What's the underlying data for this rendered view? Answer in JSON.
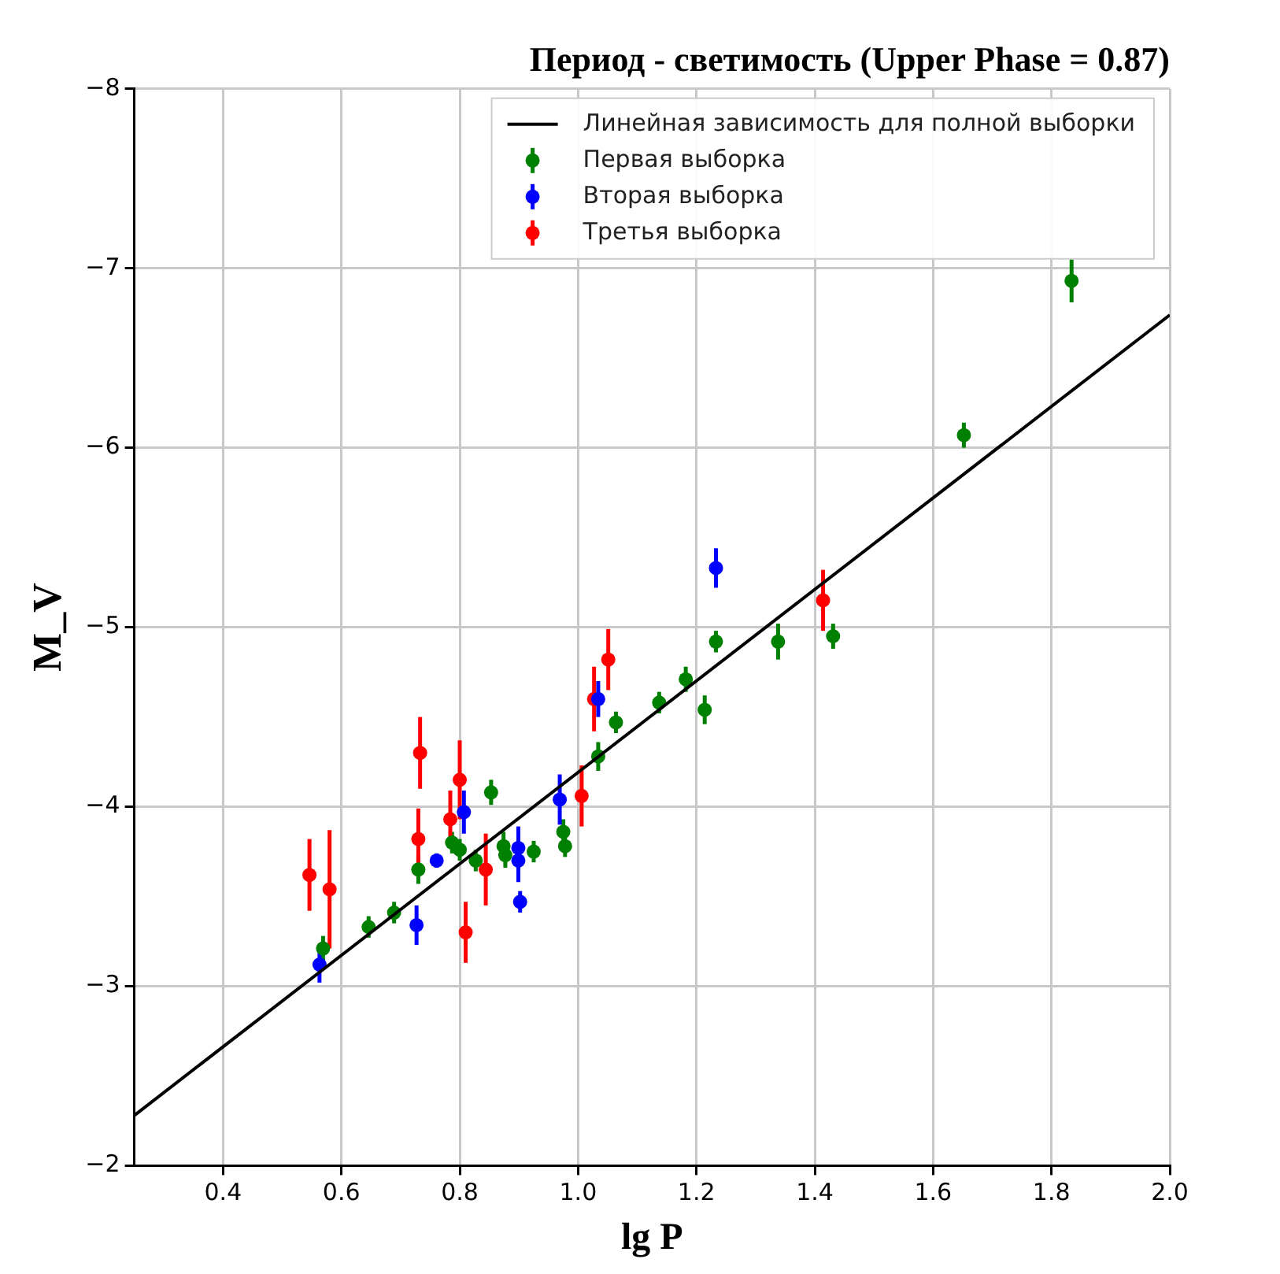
{
  "chart_data": {
    "type": "scatter",
    "title": "Период - светимость (Upper Phase = 0.87)",
    "xlabel": "lg P",
    "ylabel": "M_V",
    "xlim": [
      0.25,
      2.0
    ],
    "xticks": [
      0.4,
      0.6,
      0.8,
      {
        "value": 1,
        "label": "1.0"
      },
      1.2,
      1.4,
      1.6,
      1.8,
      {
        "value": 2,
        "label": "2.0"
      }
    ],
    "ylim": [
      -2,
      -8
    ],
    "yticks": [
      -8,
      -7,
      -6,
      -5,
      -4,
      -3,
      -2
    ],
    "grid": true,
    "legend": "top right",
    "series": [
      {
        "name": "Линейная зависимость для полной выборки",
        "type": "line",
        "marker": "none",
        "color": "#000000",
        "x": [
          0.25,
          2.0
        ],
        "values": [
          -2.28,
          -6.74
        ]
      },
      {
        "name": "Первая выборка",
        "marker": "circle",
        "color": "#008000",
        "x": [
          0.569,
          0.646,
          0.689,
          0.73,
          0.853,
          0.787,
          0.8,
          0.827,
          0.874,
          0.877,
          0.925,
          0.975,
          0.978,
          1.034,
          1.064,
          1.137,
          1.182,
          1.214,
          1.233,
          1.338,
          1.431,
          1.652,
          1.834
        ],
        "values": [
          -3.21,
          -3.33,
          -3.41,
          -3.65,
          -4.08,
          -3.8,
          -3.76,
          -3.7,
          -3.78,
          -3.73,
          -3.75,
          -3.86,
          -3.78,
          -4.28,
          -4.47,
          -4.58,
          -4.71,
          -4.54,
          -4.92,
          -4.92,
          -4.95,
          -6.07,
          -6.93
        ],
        "errors": [
          0.07,
          0.06,
          0.06,
          0.08,
          0.07,
          0.06,
          0.06,
          0.06,
          0.08,
          0.07,
          0.06,
          0.07,
          0.06,
          0.08,
          0.06,
          0.06,
          0.07,
          0.08,
          0.06,
          0.1,
          0.07,
          0.07,
          0.12
        ]
      },
      {
        "name": "Вторая выборка",
        "marker": "circle",
        "color": "#0000ff",
        "x": [
          0.563,
          0.727,
          0.761,
          0.807,
          0.899,
          0.899,
          0.902,
          0.969,
          1.034,
          1.233
        ],
        "values": [
          -3.12,
          -3.34,
          -3.7,
          -3.97,
          -3.77,
          -3.7,
          -3.47,
          -4.04,
          -4.6,
          -5.33
        ],
        "errors": [
          0.1,
          0.11,
          0.04,
          0.12,
          0.12,
          0.12,
          0.06,
          0.14,
          0.1,
          0.11
        ]
      },
      {
        "name": "Третья выборка",
        "marker": "circle",
        "color": "#ff0000",
        "x": [
          0.546,
          0.58,
          0.733,
          0.73,
          0.8,
          0.784,
          0.844,
          0.81,
          1.006,
          1.027,
          1.051,
          1.414
        ],
        "values": [
          -3.62,
          -3.54,
          -4.3,
          -3.82,
          -4.15,
          -3.93,
          -3.65,
          -3.3,
          -4.06,
          -4.6,
          -4.82,
          -5.15
        ],
        "errors": [
          0.2,
          0.33,
          0.2,
          0.17,
          0.22,
          0.16,
          0.2,
          0.17,
          0.17,
          0.18,
          0.17,
          0.17
        ]
      }
    ]
  }
}
